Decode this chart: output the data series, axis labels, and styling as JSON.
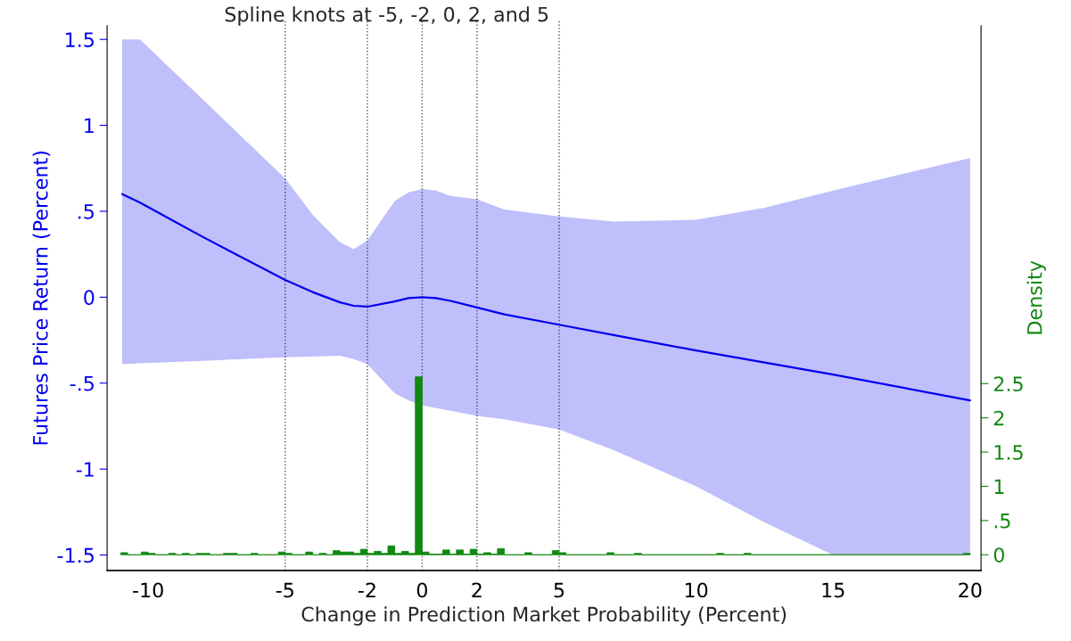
{
  "chart_data": {
    "type": "line",
    "title": "Spline knots at -5, -2, 0, 2, and 5",
    "xlabel": "Change in Prediction Market Probability (Percent)",
    "ylabel": "Futures Price Return (Percent)",
    "y2label": "Density",
    "series": [
      {
        "color": "#0000ee",
        "x": [
          -10.95,
          -10.3,
          -8,
          -5,
          -4,
          -3,
          -2.5,
          -2,
          -1,
          -0.5,
          0,
          0.5,
          1,
          2,
          3,
          5,
          7,
          10,
          12.5,
          15,
          20
        ],
        "values": [
          0.6,
          0.55,
          0.35,
          0.1,
          0.03,
          -0.03,
          -0.05,
          -0.055,
          -0.025,
          -0.005,
          0.0,
          -0.005,
          -0.02,
          -0.06,
          -0.1,
          -0.16,
          -0.22,
          -0.31,
          -0.38,
          -0.45,
          -0.6
        ],
        "upper": [
          1.5,
          1.5,
          1.15,
          0.69,
          0.48,
          0.32,
          0.28,
          0.33,
          0.56,
          0.61,
          0.63,
          0.62,
          0.59,
          0.57,
          0.51,
          0.47,
          0.44,
          0.45,
          0.52,
          0.62,
          0.81
        ],
        "lower": [
          -0.39,
          -0.385,
          -0.37,
          -0.35,
          -0.345,
          -0.34,
          -0.36,
          -0.39,
          -0.56,
          -0.6,
          -0.63,
          -0.645,
          -0.66,
          -0.69,
          -0.71,
          -0.77,
          -0.89,
          -1.1,
          -1.31,
          -1.5,
          -1.5
        ]
      },
      {
        "type": "histogram",
        "axis": "y2",
        "color": "#118811",
        "bins": [
          -11,
          -10.75,
          -10.25,
          -10,
          -9.75,
          -9.25,
          -9,
          -8.75,
          -8.5,
          -8.25,
          -7.75,
          -7.25,
          -6.75,
          -6.25,
          -6,
          -5.25,
          -5,
          -4.75,
          -4.25,
          -4,
          -3.75,
          -3.5,
          -3.25,
          -3,
          -2.5,
          -2.25,
          -2,
          -1.75,
          -1.5,
          -1.25,
          -1,
          -0.75,
          -0.5,
          -0.25,
          0,
          0.25,
          0.75,
          1,
          1.25,
          1.5,
          1.75,
          2,
          2.25,
          2.5,
          2.75,
          3,
          3.75,
          4,
          4.75,
          5,
          5.25,
          6.75,
          7,
          7.75,
          8,
          10.75,
          11,
          11.75,
          12,
          19.75,
          20
        ],
        "values": [
          0.03,
          0,
          0.04,
          0.02,
          0,
          0.02,
          0,
          0.02,
          0,
          0.02,
          0,
          0.02,
          0,
          0.02,
          0,
          0.04,
          0.02,
          0,
          0.04,
          0,
          0.02,
          0,
          0.06,
          0.04,
          0.02,
          0.08,
          0.02,
          0.05,
          0.02,
          0.13,
          0.02,
          0.05,
          0.02,
          2.6,
          0.04,
          0.01,
          0.07,
          0.01,
          0.07,
          0.01,
          0.08,
          0.01,
          0.03,
          0.01,
          0.09,
          0,
          0.03,
          0,
          0.06,
          0.03,
          0,
          0.03,
          0,
          0.02,
          0,
          0.02,
          0,
          0.02,
          0,
          0.02
        ]
      }
    ],
    "xlim": [
      -11.5,
      20.4
    ],
    "xticks": [
      -10,
      -5,
      -2,
      0,
      2,
      5,
      10,
      15,
      20
    ],
    "ylim": [
      -1.59,
      1.58
    ],
    "yticks": [
      {
        "value": 1.5,
        "label": "1.5"
      },
      {
        "value": 1,
        "label": "1"
      },
      {
        "value": 0.5,
        "label": ".5"
      },
      {
        "value": 0,
        "label": "0"
      },
      {
        "value": -0.5,
        "label": "-.5"
      },
      {
        "value": -1,
        "label": "-1"
      },
      {
        "value": -1.5,
        "label": "-1.5"
      }
    ],
    "y2lim": [
      -0.23,
      7.73
    ],
    "y2ticks": [
      {
        "value": 0,
        "label": "0"
      },
      {
        "value": 0.5,
        "label": ".5"
      },
      {
        "value": 1,
        "label": "1"
      },
      {
        "value": 1.5,
        "label": "1.5"
      },
      {
        "value": 2,
        "label": "2"
      },
      {
        "value": 2.5,
        "label": "2.5"
      }
    ],
    "ref_lines": [
      {
        "axis": "x",
        "value": -5,
        "color": "#555555",
        "line_style": "dotted"
      },
      {
        "axis": "x",
        "value": -2,
        "color": "#555555",
        "line_style": "dotted"
      },
      {
        "axis": "x",
        "value": 0,
        "color": "#555555",
        "line_style": "dotted"
      },
      {
        "axis": "x",
        "value": 2,
        "color": "#555555",
        "line_style": "dotted"
      },
      {
        "axis": "x",
        "value": 5,
        "color": "#555555",
        "line_style": "dotted"
      }
    ],
    "grid": false,
    "legend": false
  }
}
